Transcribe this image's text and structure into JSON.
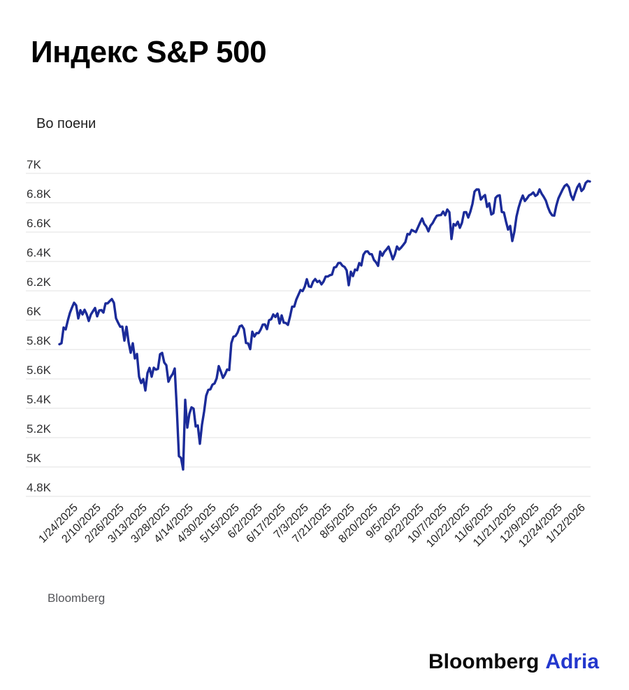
{
  "header": {
    "title": "Индекс S&P 500",
    "subtitle": "Во поени"
  },
  "footer": {
    "source": "Bloomberg",
    "logo_black": "Bloomberg",
    "logo_blue": "Adria"
  },
  "colors": {
    "line": "#1b2b99",
    "grid": "#e8e8e8",
    "axis_text": "#303032",
    "x_label_text": "#1f1f1f",
    "logo_blue": "#2337cd"
  },
  "chart_data": {
    "type": "line",
    "title": "Индекс S&P 500",
    "ylabel": "Во поени",
    "xlabel": "",
    "ylim": [
      4800,
      7000
    ],
    "grid": "horizontal",
    "legend_position": "none",
    "y_ticks": [
      {
        "label": "7K",
        "value": 7000
      },
      {
        "label": "6.8K",
        "value": 6800
      },
      {
        "label": "6.6K",
        "value": 6600
      },
      {
        "label": "6.4K",
        "value": 6400
      },
      {
        "label": "6.2K",
        "value": 6200
      },
      {
        "label": "6K",
        "value": 6000
      },
      {
        "label": "5.8K",
        "value": 5800
      },
      {
        "label": "5.6K",
        "value": 5600
      },
      {
        "label": "5.4K",
        "value": 5400
      },
      {
        "label": "5.2K",
        "value": 5200
      },
      {
        "label": "5K",
        "value": 5000
      },
      {
        "label": "4.8K",
        "value": 4800
      }
    ],
    "x_tick_labels": [
      "1/24/2025",
      "2/10/2025",
      "2/26/2025",
      "3/13/2025",
      "3/28/2025",
      "4/14/2025",
      "4/30/2025",
      "5/15/2025",
      "6/2/2025",
      "6/17/2025",
      "7/3/2025",
      "7/21/2025",
      "8/5/2025",
      "8/20/2025",
      "9/5/2025",
      "9/22/2025",
      "10/7/2025",
      "10/22/2025",
      "11/6/2025",
      "11/21/2025",
      "12/9/2025",
      "12/24/2025",
      "1/12/2026"
    ],
    "series": [
      {
        "name": "S&P 500",
        "points": [
          [
            "1/13/2025",
            5836
          ],
          [
            "1/14/2025",
            5843
          ],
          [
            "1/15/2025",
            5950
          ],
          [
            "1/16/2025",
            5937
          ],
          [
            "1/17/2025",
            5997
          ],
          [
            "1/21/2025",
            6049
          ],
          [
            "1/22/2025",
            6086
          ],
          [
            "1/23/2025",
            6119
          ],
          [
            "1/24/2025",
            6101
          ],
          [
            "1/27/2025",
            6012
          ],
          [
            "1/28/2025",
            6068
          ],
          [
            "1/29/2025",
            6039
          ],
          [
            "1/30/2025",
            6071
          ],
          [
            "1/31/2025",
            6041
          ],
          [
            "2/3/2025",
            5995
          ],
          [
            "2/4/2025",
            6038
          ],
          [
            "2/5/2025",
            6061
          ],
          [
            "2/6/2025",
            6083
          ],
          [
            "2/7/2025",
            6026
          ],
          [
            "2/10/2025",
            6066
          ],
          [
            "2/11/2025",
            6069
          ],
          [
            "2/12/2025",
            6052
          ],
          [
            "2/13/2025",
            6115
          ],
          [
            "2/14/2025",
            6115
          ],
          [
            "2/18/2025",
            6130
          ],
          [
            "2/19/2025",
            6144
          ],
          [
            "2/20/2025",
            6118
          ],
          [
            "2/21/2025",
            6013
          ],
          [
            "2/24/2025",
            5983
          ],
          [
            "2/25/2025",
            5955
          ],
          [
            "2/26/2025",
            5956
          ],
          [
            "2/27/2025",
            5861
          ],
          [
            "2/28/2025",
            5955
          ],
          [
            "3/3/2025",
            5850
          ],
          [
            "3/4/2025",
            5778
          ],
          [
            "3/5/2025",
            5843
          ],
          [
            "3/6/2025",
            5739
          ],
          [
            "3/7/2025",
            5770
          ],
          [
            "3/10/2025",
            5615
          ],
          [
            "3/11/2025",
            5572
          ],
          [
            "3/12/2025",
            5599
          ],
          [
            "3/13/2025",
            5521
          ],
          [
            "3/14/2025",
            5639
          ],
          [
            "3/17/2025",
            5675
          ],
          [
            "3/18/2025",
            5615
          ],
          [
            "3/19/2025",
            5676
          ],
          [
            "3/20/2025",
            5663
          ],
          [
            "3/21/2025",
            5668
          ],
          [
            "3/24/2025",
            5768
          ],
          [
            "3/25/2025",
            5777
          ],
          [
            "3/26/2025",
            5712
          ],
          [
            "3/27/2025",
            5693
          ],
          [
            "3/28/2025",
            5581
          ],
          [
            "3/31/2025",
            5612
          ],
          [
            "4/1/2025",
            5633
          ],
          [
            "4/2/2025",
            5671
          ],
          [
            "4/3/2025",
            5396
          ],
          [
            "4/4/2025",
            5074
          ],
          [
            "4/7/2025",
            5062
          ],
          [
            "4/8/2025",
            4983
          ],
          [
            "4/9/2025",
            5457
          ],
          [
            "4/10/2025",
            5268
          ],
          [
            "4/11/2025",
            5363
          ],
          [
            "4/14/2025",
            5406
          ],
          [
            "4/15/2025",
            5397
          ],
          [
            "4/16/2025",
            5276
          ],
          [
            "4/17/2025",
            5283
          ],
          [
            "4/21/2025",
            5158
          ],
          [
            "4/22/2025",
            5288
          ],
          [
            "4/23/2025",
            5376
          ],
          [
            "4/24/2025",
            5485
          ],
          [
            "4/25/2025",
            5525
          ],
          [
            "4/28/2025",
            5529
          ],
          [
            "4/29/2025",
            5561
          ],
          [
            "4/30/2025",
            5569
          ],
          [
            "5/1/2025",
            5604
          ],
          [
            "5/2/2025",
            5687
          ],
          [
            "5/5/2025",
            5650
          ],
          [
            "5/6/2025",
            5607
          ],
          [
            "5/7/2025",
            5631
          ],
          [
            "5/8/2025",
            5664
          ],
          [
            "5/9/2025",
            5660
          ],
          [
            "5/12/2025",
            5844
          ],
          [
            "5/13/2025",
            5887
          ],
          [
            "5/14/2025",
            5893
          ],
          [
            "5/15/2025",
            5916
          ],
          [
            "5/16/2025",
            5958
          ],
          [
            "5/19/2025",
            5964
          ],
          [
            "5/20/2025",
            5940
          ],
          [
            "5/21/2025",
            5845
          ],
          [
            "5/22/2025",
            5842
          ],
          [
            "5/23/2025",
            5803
          ],
          [
            "5/27/2025",
            5922
          ],
          [
            "5/28/2025",
            5889
          ],
          [
            "5/29/2025",
            5912
          ],
          [
            "5/30/2025",
            5912
          ],
          [
            "6/2/2025",
            5936
          ],
          [
            "6/3/2025",
            5970
          ],
          [
            "6/4/2025",
            5971
          ],
          [
            "6/5/2025",
            5939
          ],
          [
            "6/6/2025",
            6000
          ],
          [
            "6/9/2025",
            6006
          ],
          [
            "6/10/2025",
            6039
          ],
          [
            "6/11/2025",
            6022
          ],
          [
            "6/12/2025",
            6045
          ],
          [
            "6/13/2025",
            5977
          ],
          [
            "6/16/2025",
            6033
          ],
          [
            "6/17/2025",
            5983
          ],
          [
            "6/18/2025",
            5981
          ],
          [
            "6/20/2025",
            5968
          ],
          [
            "6/23/2025",
            6025
          ],
          [
            "6/24/2025",
            6092
          ],
          [
            "6/25/2025",
            6092
          ],
          [
            "6/26/2025",
            6141
          ],
          [
            "6/27/2025",
            6173
          ],
          [
            "6/30/2025",
            6205
          ],
          [
            "7/1/2025",
            6198
          ],
          [
            "7/2/2025",
            6227
          ],
          [
            "7/3/2025",
            6279
          ],
          [
            "7/7/2025",
            6230
          ],
          [
            "7/8/2025",
            6226
          ],
          [
            "7/9/2025",
            6263
          ],
          [
            "7/10/2025",
            6280
          ],
          [
            "7/11/2025",
            6260
          ],
          [
            "7/14/2025",
            6268
          ],
          [
            "7/15/2025",
            6244
          ],
          [
            "7/16/2025",
            6264
          ],
          [
            "7/17/2025",
            6297
          ],
          [
            "7/18/2025",
            6297
          ],
          [
            "7/21/2025",
            6306
          ],
          [
            "7/22/2025",
            6310
          ],
          [
            "7/23/2025",
            6359
          ],
          [
            "7/24/2025",
            6363
          ],
          [
            "7/25/2025",
            6389
          ],
          [
            "7/28/2025",
            6390
          ],
          [
            "7/29/2025",
            6371
          ],
          [
            "7/30/2025",
            6363
          ],
          [
            "7/31/2025",
            6339
          ],
          [
            "8/1/2025",
            6238
          ],
          [
            "8/4/2025",
            6330
          ],
          [
            "8/5/2025",
            6300
          ],
          [
            "8/6/2025",
            6345
          ],
          [
            "8/7/2025",
            6340
          ],
          [
            "8/8/2025",
            6389
          ],
          [
            "8/11/2025",
            6373
          ],
          [
            "8/12/2025",
            6446
          ],
          [
            "8/13/2025",
            6467
          ],
          [
            "8/14/2025",
            6469
          ],
          [
            "8/15/2025",
            6450
          ],
          [
            "8/18/2025",
            6449
          ],
          [
            "8/19/2025",
            6411
          ],
          [
            "8/20/2025",
            6395
          ],
          [
            "8/21/2025",
            6370
          ],
          [
            "8/22/2025",
            6467
          ],
          [
            "8/25/2025",
            6439
          ],
          [
            "8/26/2025",
            6466
          ],
          [
            "8/27/2025",
            6482
          ],
          [
            "8/28/2025",
            6501
          ],
          [
            "8/29/2025",
            6460
          ],
          [
            "9/2/2025",
            6415
          ],
          [
            "9/3/2025",
            6448
          ],
          [
            "9/4/2025",
            6502
          ],
          [
            "9/5/2025",
            6481
          ],
          [
            "9/8/2025",
            6495
          ],
          [
            "9/9/2025",
            6513
          ],
          [
            "9/10/2025",
            6532
          ],
          [
            "9/11/2025",
            6587
          ],
          [
            "9/12/2025",
            6584
          ],
          [
            "9/15/2025",
            6615
          ],
          [
            "9/16/2025",
            6607
          ],
          [
            "9/17/2025",
            6600
          ],
          [
            "9/18/2025",
            6632
          ],
          [
            "9/19/2025",
            6664
          ],
          [
            "9/22/2025",
            6693
          ],
          [
            "9/23/2025",
            6656
          ],
          [
            "9/24/2025",
            6638
          ],
          [
            "9/25/2025",
            6605
          ],
          [
            "9/26/2025",
            6644
          ],
          [
            "9/29/2025",
            6661
          ],
          [
            "9/30/2025",
            6688
          ],
          [
            "10/1/2025",
            6711
          ],
          [
            "10/2/2025",
            6715
          ],
          [
            "10/3/2025",
            6716
          ],
          [
            "10/6/2025",
            6740
          ],
          [
            "10/7/2025",
            6715
          ],
          [
            "10/8/2025",
            6754
          ],
          [
            "10/9/2025",
            6735
          ],
          [
            "10/10/2025",
            6553
          ],
          [
            "10/13/2025",
            6655
          ],
          [
            "10/14/2025",
            6645
          ],
          [
            "10/15/2025",
            6671
          ],
          [
            "10/16/2025",
            6629
          ],
          [
            "10/17/2025",
            6664
          ],
          [
            "10/20/2025",
            6735
          ],
          [
            "10/21/2025",
            6736
          ],
          [
            "10/22/2025",
            6699
          ],
          [
            "10/23/2025",
            6739
          ],
          [
            "10/24/2025",
            6792
          ],
          [
            "10/27/2025",
            6876
          ],
          [
            "10/28/2025",
            6891
          ],
          [
            "10/29/2025",
            6890
          ],
          [
            "10/30/2025",
            6822
          ],
          [
            "10/31/2025",
            6840
          ],
          [
            "11/3/2025",
            6852
          ],
          [
            "11/4/2025",
            6772
          ],
          [
            "11/5/2025",
            6796
          ],
          [
            "11/6/2025",
            6720
          ],
          [
            "11/7/2025",
            6729
          ],
          [
            "11/10/2025",
            6833
          ],
          [
            "11/11/2025",
            6847
          ],
          [
            "11/12/2025",
            6851
          ],
          [
            "11/13/2025",
            6737
          ],
          [
            "11/14/2025",
            6734
          ],
          [
            "11/17/2025",
            6672
          ],
          [
            "11/18/2025",
            6617
          ],
          [
            "11/19/2025",
            6642
          ],
          [
            "11/20/2025",
            6539
          ],
          [
            "11/21/2025",
            6603
          ],
          [
            "11/24/2025",
            6705
          ],
          [
            "11/25/2025",
            6766
          ],
          [
            "11/26/2025",
            6813
          ],
          [
            "11/28/2025",
            6849
          ],
          [
            "12/1/2025",
            6812
          ],
          [
            "12/2/2025",
            6829
          ],
          [
            "12/3/2025",
            6850
          ],
          [
            "12/4/2025",
            6857
          ],
          [
            "12/5/2025",
            6870
          ],
          [
            "12/8/2025",
            6846
          ],
          [
            "12/9/2025",
            6856
          ],
          [
            "12/10/2025",
            6891
          ],
          [
            "12/11/2025",
            6862
          ],
          [
            "12/12/2025",
            6840
          ],
          [
            "12/15/2025",
            6815
          ],
          [
            "12/16/2025",
            6770
          ],
          [
            "12/17/2025",
            6735
          ],
          [
            "12/18/2025",
            6715
          ],
          [
            "12/19/2025",
            6712
          ],
          [
            "12/22/2025",
            6780
          ],
          [
            "12/23/2025",
            6830
          ],
          [
            "12/24/2025",
            6860
          ],
          [
            "12/26/2025",
            6890
          ],
          [
            "12/29/2025",
            6915
          ],
          [
            "12/30/2025",
            6925
          ],
          [
            "12/31/2025",
            6905
          ],
          [
            "1/2/2026",
            6850
          ],
          [
            "1/5/2026",
            6820
          ],
          [
            "1/6/2026",
            6865
          ],
          [
            "1/7/2026",
            6905
          ],
          [
            "1/8/2026",
            6928
          ],
          [
            "1/9/2026",
            6880
          ],
          [
            "1/12/2026",
            6895
          ],
          [
            "1/13/2026",
            6935
          ],
          [
            "1/14/2026",
            6948
          ],
          [
            "1/15/2026",
            6945
          ]
        ]
      }
    ]
  }
}
